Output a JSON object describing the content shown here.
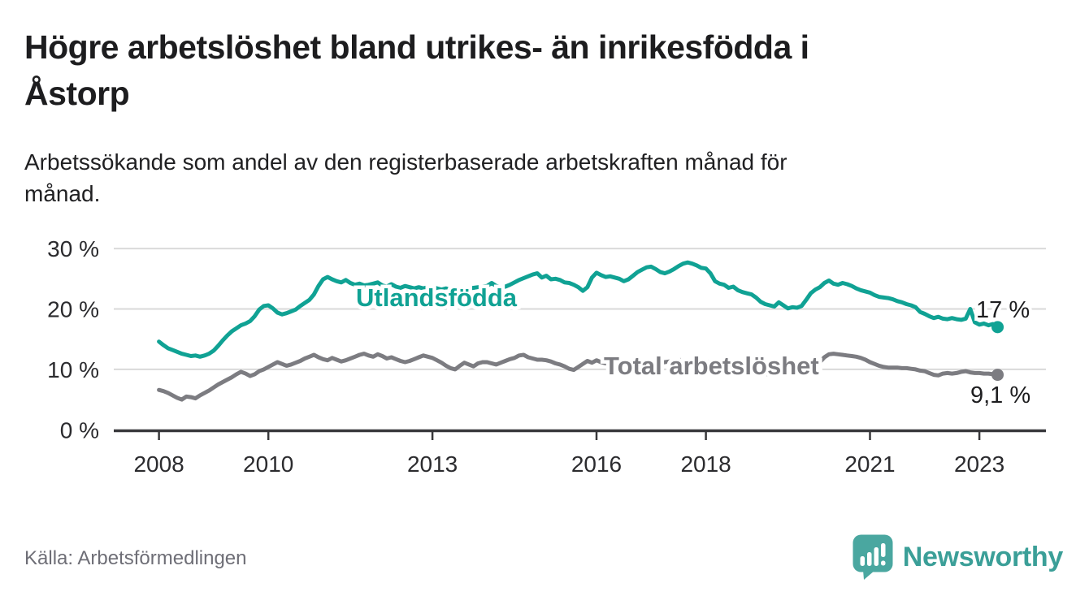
{
  "header": {
    "title": "Högre arbetslöshet bland utrikes- än inrikesfödda i Åstorp",
    "title_lines": [
      "Högre arbetslöshet bland utrikes- än inrikesfödda i",
      "Åstorp"
    ],
    "subtitle": "Arbetssökande som andel av den registerbaserade arbetskraften månad för månad.",
    "subtitle_lines": [
      "Arbetssökande som andel av den registerbaserade arbetskraften månad för",
      "månad."
    ]
  },
  "footer": {
    "source": "Källa: Arbetsförmedlingen",
    "brand": "Newsworthy",
    "brand_icon": "speech-bubble-bar-chart-icon"
  },
  "colors": {
    "utlandsfodda": "#10a294",
    "total": "#7c7c81",
    "grid": "#dadada",
    "axis": "#38383b",
    "tick_text": "#2b2b2e",
    "annotation_text": "#1d1d1f",
    "brand_icon": "#4aa7a0",
    "brand_text": "#3b9f98"
  },
  "chart_data": {
    "type": "line",
    "title": "Högre arbetslöshet bland utrikes- än inrikesfödda i Åstorp",
    "subtitle": "Arbetssökande som andel av den registerbaserade arbetskraften månad för månad.",
    "x_unit": "month",
    "x_start": "2008-01",
    "x_end": "2023-05",
    "xlim": [
      2007.2,
      2024.2
    ],
    "ylim": [
      0,
      31
    ],
    "grid": "horizontal",
    "legend_position": "inline-labels",
    "y_axis_ticks": [
      {
        "value": 0,
        "label": "0 %"
      },
      {
        "value": 10,
        "label": "10 %"
      },
      {
        "value": 20,
        "label": "20 %"
      },
      {
        "value": 30,
        "label": "30 %"
      }
    ],
    "x_axis_ticks": [
      {
        "value": 2008,
        "label": "2008"
      },
      {
        "value": 2010,
        "label": "2010"
      },
      {
        "value": 2013,
        "label": "2013"
      },
      {
        "value": 2016,
        "label": "2016"
      },
      {
        "value": 2018,
        "label": "2018"
      },
      {
        "value": 2021,
        "label": "2021"
      },
      {
        "value": 2023,
        "label": "2023"
      }
    ],
    "series": [
      {
        "id": "utlandsfodda",
        "name": "Utlandsfödda",
        "end_label": "17 %",
        "end_value": 17.0,
        "values": [
          14.6,
          14.0,
          13.5,
          13.2,
          12.9,
          12.6,
          12.4,
          12.2,
          12.3,
          12.1,
          12.3,
          12.6,
          13.1,
          13.9,
          14.8,
          15.6,
          16.3,
          16.8,
          17.3,
          17.6,
          18.0,
          18.8,
          19.9,
          20.5,
          20.6,
          20.1,
          19.4,
          19.1,
          19.3,
          19.6,
          19.9,
          20.5,
          21.0,
          21.5,
          22.4,
          23.8,
          24.9,
          25.3,
          24.9,
          24.6,
          24.4,
          24.8,
          24.3,
          24.0,
          24.2,
          23.9,
          24.0,
          24.2,
          24.4,
          23.9,
          23.7,
          24.1,
          23.7,
          23.5,
          23.8,
          23.6,
          23.4,
          23.6,
          23.4,
          23.6,
          23.7,
          23.4,
          23.2,
          23.4,
          23.1,
          23.0,
          23.2,
          23.3,
          23.4,
          23.5,
          23.6,
          23.7,
          23.8,
          24.3,
          23.8,
          23.6,
          23.7,
          24.0,
          24.4,
          24.8,
          25.1,
          25.4,
          25.7,
          25.9,
          25.2,
          25.5,
          24.9,
          25.0,
          24.8,
          24.4,
          24.3,
          24.0,
          23.6,
          23.0,
          23.6,
          25.2,
          26.0,
          25.6,
          25.3,
          25.4,
          25.2,
          25.0,
          24.6,
          24.9,
          25.5,
          26.1,
          26.5,
          26.9,
          27.0,
          26.6,
          26.1,
          25.9,
          26.2,
          26.6,
          27.1,
          27.5,
          27.7,
          27.5,
          27.2,
          26.8,
          26.7,
          25.9,
          24.6,
          24.2,
          24.0,
          23.5,
          23.7,
          23.1,
          22.8,
          22.6,
          22.4,
          21.9,
          21.2,
          20.8,
          20.6,
          20.4,
          21.1,
          20.6,
          20.1,
          20.3,
          20.2,
          20.5,
          21.5,
          22.6,
          23.2,
          23.6,
          24.3,
          24.7,
          24.2,
          24.0,
          24.3,
          24.1,
          23.8,
          23.4,
          23.1,
          22.9,
          22.7,
          22.3,
          22.0,
          21.9,
          21.8,
          21.6,
          21.3,
          21.1,
          20.8,
          20.6,
          20.3,
          19.5,
          19.2,
          18.8,
          18.5,
          18.7,
          18.4,
          18.3,
          18.5,
          18.3,
          18.2,
          18.4,
          20.0,
          17.8,
          17.4,
          17.6,
          17.3,
          17.5,
          17.0
        ]
      },
      {
        "id": "total-arbetsloshet",
        "name": "Total arbetslöshet",
        "end_label": "9,1 %",
        "end_value": 9.1,
        "values": [
          6.6,
          6.4,
          6.1,
          5.7,
          5.3,
          5.0,
          5.5,
          5.4,
          5.2,
          5.7,
          6.1,
          6.5,
          7.0,
          7.5,
          7.9,
          8.3,
          8.7,
          9.2,
          9.6,
          9.3,
          8.9,
          9.2,
          9.7,
          10.0,
          10.4,
          10.8,
          11.2,
          10.9,
          10.6,
          10.8,
          11.1,
          11.4,
          11.8,
          12.1,
          12.4,
          12.0,
          11.7,
          11.5,
          11.9,
          11.6,
          11.3,
          11.5,
          11.8,
          12.1,
          12.4,
          12.6,
          12.3,
          12.1,
          12.5,
          12.2,
          11.8,
          12.0,
          11.7,
          11.4,
          11.2,
          11.4,
          11.7,
          12.0,
          12.3,
          12.1,
          11.9,
          11.5,
          11.1,
          10.6,
          10.2,
          10.0,
          10.6,
          11.1,
          10.8,
          10.5,
          11.0,
          11.2,
          11.2,
          11.0,
          10.8,
          11.1,
          11.4,
          11.7,
          11.9,
          12.3,
          12.4,
          12.0,
          11.8,
          11.6,
          11.6,
          11.5,
          11.3,
          11.0,
          10.8,
          10.5,
          10.1,
          9.9,
          10.4,
          10.9,
          11.4,
          11.1,
          11.5,
          11.2,
          11.0,
          11.2,
          11.0,
          10.9,
          11.1,
          11.0,
          10.9,
          11.1,
          11.2,
          11.3,
          11.3,
          11.2,
          11.1,
          11.2,
          11.3,
          11.4,
          11.5,
          11.6,
          11.5,
          11.4,
          11.3,
          11.4,
          11.3,
          11.1,
          10.9,
          10.7,
          10.5,
          10.3,
          10.2,
          10.0,
          9.9,
          9.7,
          9.6,
          9.7,
          9.5,
          9.3,
          9.1,
          9.0,
          9.2,
          9.1,
          9.0,
          9.2,
          9.3,
          9.5,
          9.8,
          10.2,
          10.6,
          11.2,
          12.0,
          12.5,
          12.6,
          12.5,
          12.4,
          12.3,
          12.2,
          12.1,
          11.9,
          11.6,
          11.2,
          10.9,
          10.6,
          10.4,
          10.3,
          10.3,
          10.3,
          10.2,
          10.2,
          10.1,
          10.0,
          9.8,
          9.7,
          9.4,
          9.1,
          9.0,
          9.3,
          9.4,
          9.3,
          9.4,
          9.6,
          9.7,
          9.5,
          9.4,
          9.4,
          9.3,
          9.3,
          9.2,
          9.1
        ]
      }
    ]
  }
}
